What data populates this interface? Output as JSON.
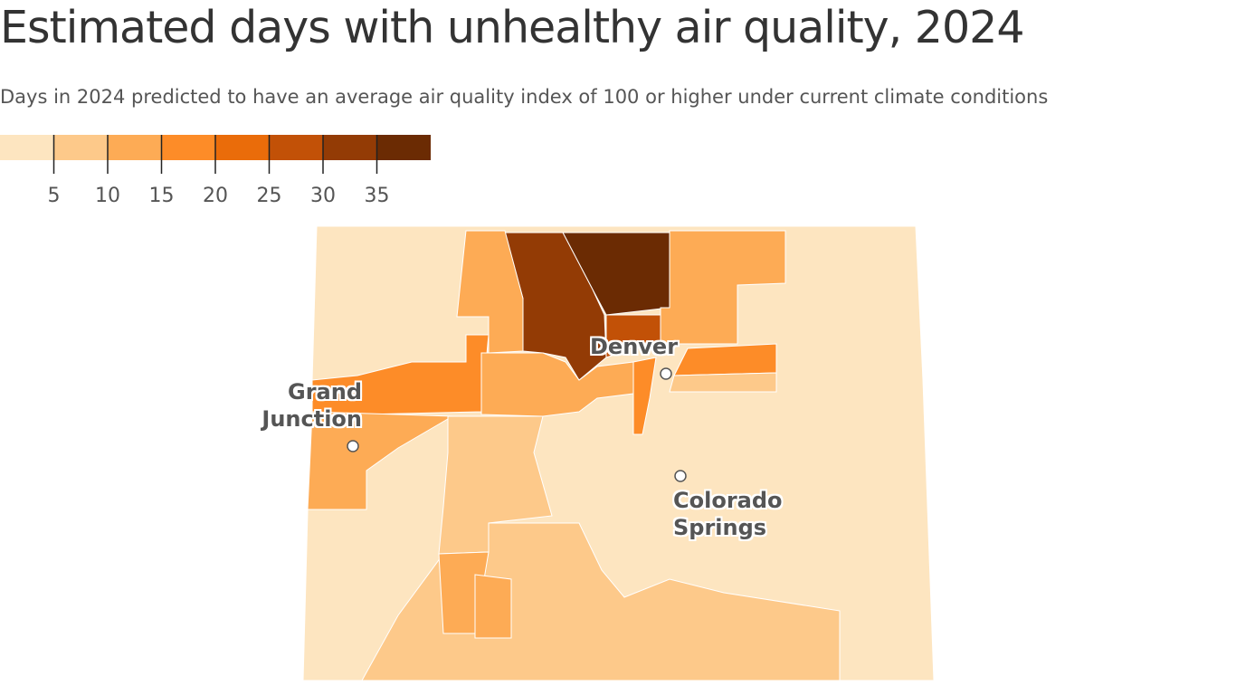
{
  "title": "Estimated days with unhealthy air quality, 2024",
  "subtitle": "Days in 2024 predicted to have an average air quality index of 100 or higher under current climate conditions",
  "legend": {
    "colors": [
      "#fde5c0",
      "#fdc98a",
      "#fdab55",
      "#fd8c28",
      "#ea6c0a",
      "#c25107",
      "#933b05",
      "#6b2b03"
    ],
    "range": [
      0,
      40
    ],
    "ticks": [
      5,
      10,
      15,
      20,
      25,
      30,
      35
    ]
  },
  "counties": [
    3,
    38,
    33,
    27,
    13,
    13,
    18,
    13,
    13,
    18,
    18,
    8,
    8,
    8,
    13,
    13
  ],
  "cities": [
    "Denver",
    "Grand Junction",
    "Colorado Springs"
  ]
}
